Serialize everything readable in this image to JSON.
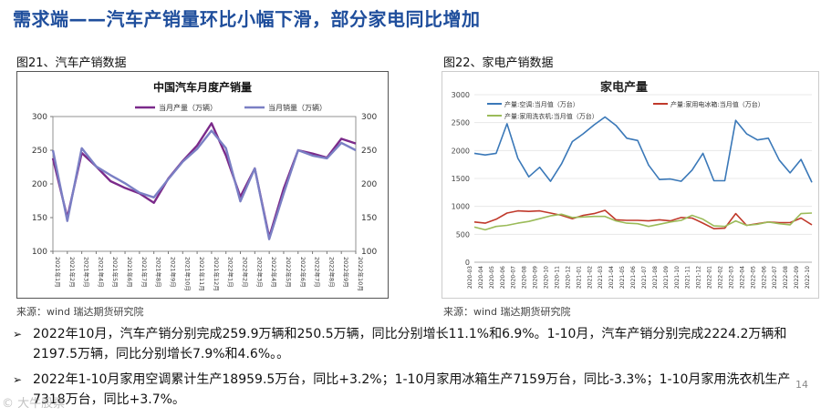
{
  "title": "需求端——汽车产销量环比小幅下滑，部分家电同比增加",
  "left": {
    "caption": "图21、汽车产销数据",
    "source": "来源：wind   瑞达期货研究院"
  },
  "right": {
    "caption": "图22、家电产销数据",
    "source": "来源：wind   瑞达期货研究院"
  },
  "bullets": [
    "2022年10月，汽车产销分别完成259.9万辆和250.5万辆，同比分别增长11.1%和6.9%。1-10月，汽车产销分别完成2224.2万辆和2197.5万辆，同比分别增长7.9%和4.6%。。",
    "2022年1-10月家用空调累计生产18959.5万台，同比+3.2%；1-10月家用冰箱生产7159万台，同比-3.3%；1-10月家用洗衣机生产7318万台，同比+3.7%。"
  ],
  "bullet_marker": "➢",
  "page_number": "14",
  "watermark": "© 大牛股票",
  "chart_data": [
    {
      "type": "line",
      "title": "中国汽车月度产销量",
      "categories": [
        "2021年1月",
        "2021年2月",
        "2021年3月",
        "2021年4月",
        "2021年5月",
        "2021年6月",
        "2021年7月",
        "2021年8月",
        "2021年9月",
        "2021年10月",
        "2021年11月",
        "2021年12月",
        "2022年1月",
        "2022年2月",
        "2022年3月",
        "2022年4月",
        "2022年5月",
        "2022年6月",
        "2022年7月",
        "2022年8月",
        "2022年9月",
        "2022年10月"
      ],
      "series": [
        {
          "name": "当月产量（万辆）",
          "color": "#7b2a8a",
          "values": [
            238,
            150,
            246,
            226,
            204,
            194,
            186,
            172,
            208,
            234,
            257,
            290,
            242,
            181,
            223,
            121,
            193,
            250,
            245,
            239,
            267,
            260
          ]
        },
        {
          "name": "当月销量（万辆）",
          "color": "#7a7fc4",
          "values": [
            250,
            145,
            253,
            226,
            213,
            201,
            187,
            180,
            207,
            233,
            252,
            279,
            253,
            174,
            223,
            118,
            186,
            250,
            242,
            238,
            261,
            250
          ]
        }
      ],
      "ylim": [
        100,
        300
      ],
      "yticks": [
        100,
        150,
        200,
        250,
        300
      ],
      "legend": "top-center"
    },
    {
      "type": "line",
      "title": "家电产量",
      "categories": [
        "2020-03",
        "2020-04",
        "2020-05",
        "2020-06",
        "2020-07",
        "2020-08",
        "2020-09",
        "2020-10",
        "2020-11",
        "2020-12",
        "2021-01",
        "2021-02",
        "2021-03",
        "2021-04",
        "2021-05",
        "2021-06",
        "2021-07",
        "2021-08",
        "2021-09",
        "2021-10",
        "2021-11",
        "2021-12",
        "2022-01",
        "2022-02",
        "2022-03",
        "2022-04",
        "2022-05",
        "2022-06",
        "2022-07",
        "2022-08",
        "2022-09",
        "2022-10"
      ],
      "series": [
        {
          "name": "产量:空调:当月值（万台）",
          "color": "#3a78b8",
          "values": [
            1950,
            1920,
            1950,
            2480,
            1860,
            1530,
            1700,
            1450,
            1760,
            2160,
            2300,
            2460,
            2600,
            2450,
            2220,
            2180,
            1740,
            1480,
            1490,
            1450,
            1650,
            1950,
            1460,
            1460,
            2540,
            2300,
            2190,
            2220,
            1830,
            1600,
            1840,
            1430
          ]
        },
        {
          "name": "产量:家用电冰箱:当月值（万台）",
          "color": "#c0392b",
          "values": [
            720,
            700,
            770,
            880,
            920,
            910,
            920,
            880,
            840,
            780,
            840,
            870,
            930,
            760,
            750,
            750,
            740,
            760,
            740,
            800,
            790,
            700,
            600,
            610,
            870,
            660,
            690,
            720,
            710,
            710,
            790,
            670
          ]
        },
        {
          "name": "产量:家用洗衣机:当月值（万台）",
          "color": "#9bbb59",
          "values": [
            630,
            580,
            640,
            660,
            700,
            730,
            780,
            830,
            860,
            800,
            810,
            820,
            820,
            740,
            700,
            690,
            640,
            680,
            720,
            750,
            840,
            770,
            650,
            640,
            740,
            660,
            680,
            720,
            690,
            670,
            870,
            880
          ]
        }
      ],
      "ylim": [
        0,
        3000
      ],
      "yticks": [
        0,
        500,
        1000,
        1500,
        2000,
        2500,
        3000
      ],
      "legend": "top-left"
    }
  ]
}
